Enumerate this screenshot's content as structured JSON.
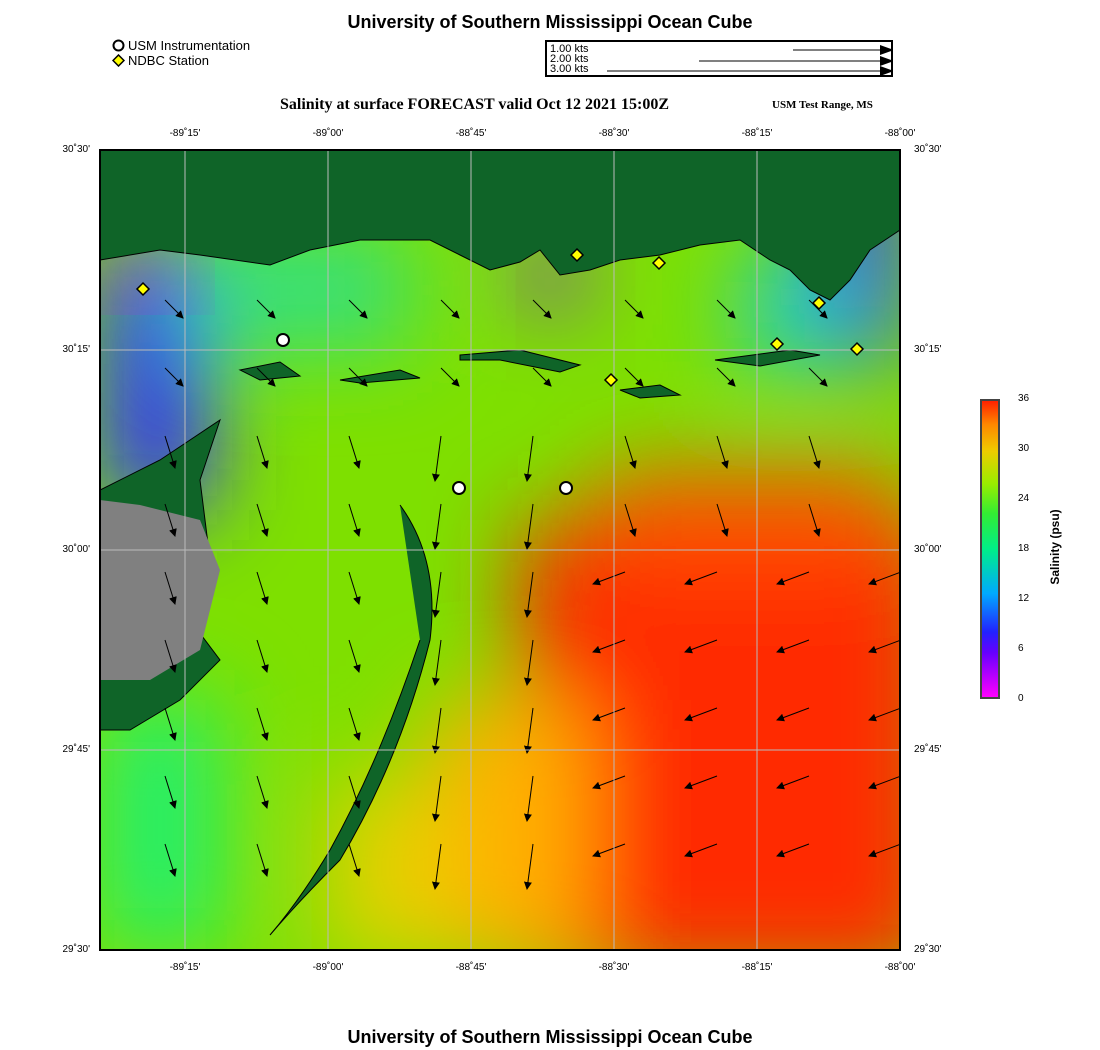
{
  "title": "University of Southern Mississippi Ocean Cube",
  "footer": "University of Southern Mississippi Ocean Cube",
  "legend": {
    "usm": "USM Instrumentation",
    "ndbc": "NDBC Station"
  },
  "vector_scale": [
    "1.00 kts",
    "2.00 kts",
    "3.00 kts"
  ],
  "subtitle": "Salinity at surface FORECAST valid Oct 12 2021 15:00Z",
  "range_label": "USM Test Range, MS",
  "lon_ticks": [
    "-89˚15'",
    "-89˚00'",
    "-88˚45'",
    "-88˚30'",
    "-88˚15'",
    "-88˚00'"
  ],
  "lat_ticks": [
    "30˚30'",
    "30˚15'",
    "30˚00'",
    "29˚45'",
    "29˚30'"
  ],
  "colorbar": {
    "title": "Salinity (psu)",
    "ticks": [
      "36",
      "30",
      "24",
      "18",
      "12",
      "6",
      "0"
    ]
  },
  "colors": {
    "land": "#0f6428",
    "marsh": "#808080"
  }
}
